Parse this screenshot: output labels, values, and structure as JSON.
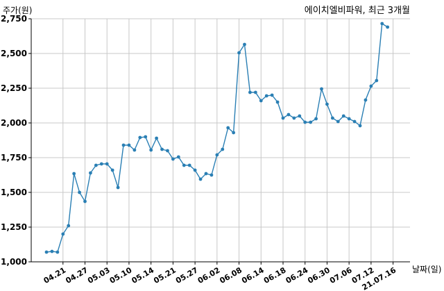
{
  "chart_data": {
    "type": "line",
    "title": "에이치엘비파워, 최근 3개월",
    "ylabel": "주가(원)",
    "xlabel": "날짜(일)",
    "ylim": [
      1000,
      2750
    ],
    "yticks": [
      1000,
      1250,
      1500,
      1750,
      2000,
      2250,
      2500,
      2750
    ],
    "ytick_labels": [
      "1,000",
      "1,250",
      "1,500",
      "1,750",
      "2,000",
      "2,250",
      "2,500",
      "2,750"
    ],
    "xtick_labels": [
      "04.21",
      "04.27",
      "05.03",
      "05.10",
      "05.14",
      "05.21",
      "05.27",
      "06.02",
      "06.08",
      "06.14",
      "06.18",
      "06.24",
      "06.30",
      "07.06",
      "07.12",
      "21.07.16"
    ],
    "xtick_index": [
      3,
      7,
      11,
      15,
      19,
      23,
      27,
      31,
      35,
      39,
      43,
      47,
      51,
      55,
      59,
      63
    ],
    "grid": true,
    "series": [
      {
        "values": [
          1070,
          1075,
          1070,
          1200,
          1260,
          1635,
          1500,
          1435,
          1640,
          1695,
          1705,
          1705,
          1660,
          1535,
          1840,
          1840,
          1805,
          1895,
          1900,
          1805,
          1890,
          1810,
          1800,
          1740,
          1755,
          1695,
          1695,
          1660,
          1595,
          1635,
          1625,
          1770,
          1810,
          1965,
          1930,
          2505,
          2565,
          2220,
          2220,
          2160,
          2195,
          2200,
          2150,
          2035,
          2060,
          2035,
          2050,
          2005,
          2005,
          2030,
          2245,
          2135,
          2035,
          2010,
          2050,
          2030,
          2010,
          1980,
          2165,
          2265,
          2305,
          2715,
          2690
        ]
      }
    ]
  }
}
